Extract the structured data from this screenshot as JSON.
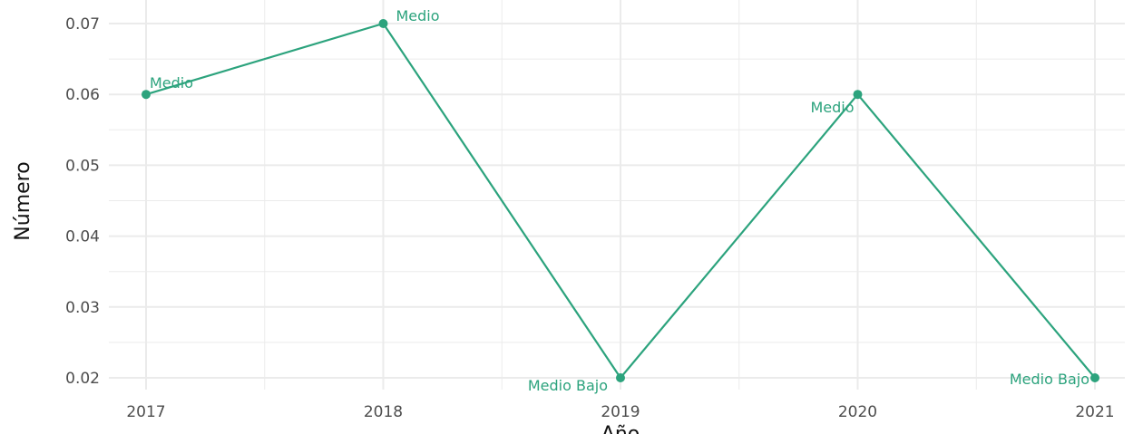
{
  "chart_data": {
    "type": "line",
    "title": "",
    "xlabel": "Año",
    "ylabel": "Número",
    "x": [
      "2017",
      "2018",
      "2019",
      "2020",
      "2021"
    ],
    "series": [
      {
        "values": [
          0.06,
          0.07,
          0.02,
          0.06,
          0.02
        ],
        "labels": [
          "Medio",
          "Medio",
          "Medio Bajo",
          "Medio",
          "Medio Bajo"
        ]
      }
    ],
    "yticks": [
      "0.02",
      "0.03",
      "0.04",
      "0.05",
      "0.06",
      "0.07"
    ],
    "ylim": [
      0.015,
      0.073
    ],
    "grid": true,
    "legend": "none",
    "colors": {
      "series": "#2ca37d",
      "grid": "#ebebeb",
      "tick_text": "#4d4d4d"
    }
  }
}
